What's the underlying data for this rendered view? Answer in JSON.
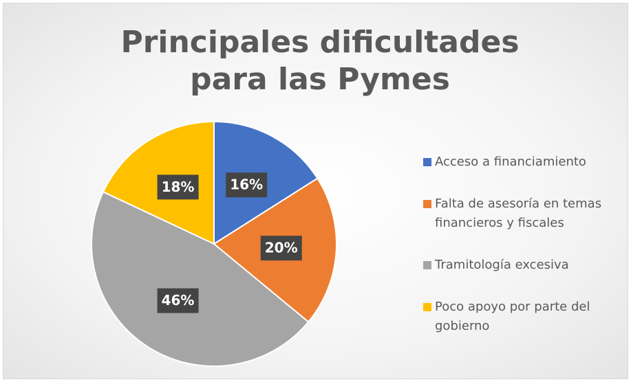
{
  "chart_data": {
    "type": "pie",
    "title": "Principales dificultades para las Pymes",
    "categories": [
      "Acceso a financiamiento",
      "Falta de asesoría en temas financieros y fiscales",
      "Tramitología excesiva",
      "Poco apoyo por parte del gobierno"
    ],
    "values": [
      16,
      20,
      46,
      18
    ],
    "value_labels": [
      "16%",
      "20%",
      "46%",
      "18%"
    ],
    "colors": [
      "#4472c4",
      "#ed7d31",
      "#a5a5a5",
      "#ffc000"
    ],
    "legend": "right"
  }
}
